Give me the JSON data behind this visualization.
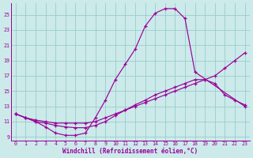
{
  "xlabel": "Windchill (Refroidissement éolien,°C)",
  "bg_color": "#cceaea",
  "grid_color": "#99cccc",
  "line_color": "#990099",
  "xlim_min": -0.5,
  "xlim_max": 23.5,
  "ylim_min": 8.5,
  "ylim_max": 26.5,
  "yticks": [
    9,
    11,
    13,
    15,
    17,
    19,
    21,
    23,
    25
  ],
  "xticks": [
    0,
    1,
    2,
    3,
    4,
    5,
    6,
    7,
    8,
    9,
    10,
    11,
    12,
    13,
    14,
    15,
    16,
    17,
    18,
    19,
    20,
    21,
    22,
    23
  ],
  "curve_peak_x": [
    0,
    1,
    2,
    3,
    4,
    5,
    6,
    7,
    8,
    9,
    10,
    11,
    12,
    13,
    14,
    15,
    16,
    17,
    18,
    23
  ],
  "curve_peak_y": [
    12.0,
    11.5,
    11.0,
    10.3,
    9.5,
    9.2,
    9.2,
    9.5,
    11.5,
    13.8,
    16.5,
    18.5,
    20.5,
    23.5,
    25.2,
    25.8,
    25.8,
    24.5,
    17.5,
    13.0
  ],
  "curve_mid_x": [
    0,
    1,
    2,
    3,
    4,
    5,
    6,
    7,
    8,
    9,
    10,
    11,
    12,
    13,
    14,
    15,
    16,
    17,
    18,
    19,
    20,
    21,
    22,
    23
  ],
  "curve_mid_y": [
    12.0,
    11.5,
    11.0,
    10.8,
    10.5,
    10.3,
    10.2,
    10.2,
    10.5,
    11.0,
    11.8,
    12.5,
    13.2,
    13.8,
    14.5,
    15.0,
    15.5,
    16.0,
    16.5,
    16.5,
    16.0,
    14.5,
    13.8,
    13.2
  ],
  "curve_flat_x": [
    0,
    1,
    2,
    3,
    4,
    5,
    6,
    7,
    8,
    9,
    10,
    11,
    12,
    13,
    14,
    15,
    16,
    17,
    18,
    19,
    20,
    21,
    22,
    23
  ],
  "curve_flat_y": [
    12.0,
    11.5,
    11.2,
    11.0,
    10.8,
    10.8,
    10.8,
    10.8,
    11.0,
    11.5,
    12.0,
    12.5,
    13.0,
    13.5,
    14.0,
    14.5,
    15.0,
    15.5,
    16.0,
    16.5,
    17.0,
    18.0,
    19.0,
    20.0
  ]
}
